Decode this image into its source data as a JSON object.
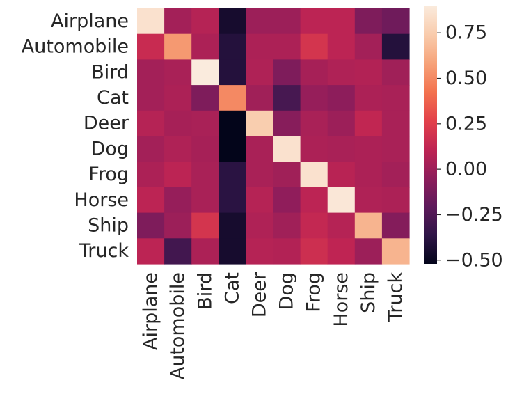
{
  "chart_data": {
    "type": "heatmap",
    "title": "",
    "xlabel": "",
    "ylabel": "",
    "row_labels": [
      "Airplane",
      "Automobile",
      "Bird",
      "Cat",
      "Deer",
      "Dog",
      "Frog",
      "Horse",
      "Ship",
      "Truck"
    ],
    "col_labels": [
      "Airplane",
      "Automobile",
      "Bird",
      "Cat",
      "Deer",
      "Dog",
      "Frog",
      "Horse",
      "Ship",
      "Truck"
    ],
    "values": [
      [
        0.85,
        0.02,
        0.08,
        -0.45,
        0.0,
        0.0,
        0.1,
        0.1,
        -0.1,
        -0.15
      ],
      [
        0.15,
        0.55,
        0.05,
        -0.4,
        0.05,
        0.05,
        0.2,
        0.1,
        0.02,
        -0.4
      ],
      [
        0.02,
        0.04,
        0.9,
        -0.4,
        0.06,
        -0.1,
        0.03,
        0.06,
        0.07,
        0.01
      ],
      [
        0.02,
        0.05,
        -0.1,
        0.5,
        0.01,
        -0.28,
        -0.02,
        -0.05,
        0.05,
        0.04
      ],
      [
        0.08,
        0.03,
        0.04,
        -0.55,
        0.75,
        -0.07,
        0.04,
        0.0,
        0.12,
        0.04
      ],
      [
        0.02,
        0.06,
        0.03,
        -0.52,
        0.04,
        0.85,
        0.05,
        0.04,
        0.05,
        0.04
      ],
      [
        0.05,
        0.1,
        0.04,
        -0.38,
        0.04,
        0.01,
        0.85,
        0.09,
        0.05,
        0.02
      ],
      [
        0.1,
        -0.02,
        0.04,
        -0.38,
        0.08,
        -0.04,
        0.1,
        0.88,
        0.06,
        0.05
      ],
      [
        -0.1,
        0.0,
        0.2,
        -0.45,
        0.06,
        0.01,
        0.13,
        0.08,
        0.65,
        -0.08
      ],
      [
        0.1,
        -0.3,
        0.05,
        -0.45,
        0.08,
        0.07,
        0.17,
        0.11,
        0.0,
        0.65
      ]
    ],
    "colorbar": {
      "min": -0.52,
      "max": 0.9,
      "ticks": [
        0.75,
        0.5,
        0.25,
        0.0,
        -0.25,
        -0.5
      ],
      "tick_labels": [
        "0.75",
        "0.50",
        "0.25",
        "0.00",
        "−0.25",
        "−0.50"
      ],
      "colormap": "rocket",
      "colors": [
        "#03051a",
        "#2f1547",
        "#5e1a5b",
        "#8e1d5b",
        "#bf2453",
        "#e3424a",
        "#f3734f",
        "#f6a37a",
        "#f9ccad",
        "#faebdd"
      ]
    }
  }
}
